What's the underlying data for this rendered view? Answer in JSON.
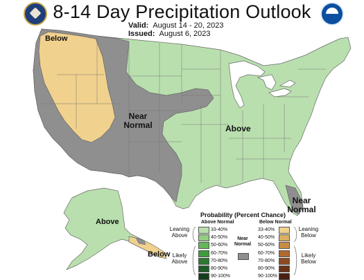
{
  "header": {
    "title": "8-14 Day Precipitation Outlook",
    "valid_label": "Valid:",
    "valid_value": "August 14 - 20, 2023",
    "issued_label": "Issued:",
    "issued_value": "August 6, 2023"
  },
  "logos": {
    "left": "commerce-seal-icon",
    "right": "noaa-logo-icon"
  },
  "map_labels": {
    "pacific_nw": "Below",
    "southwest": "Near Normal",
    "east": "Above",
    "florida": "Near Normal",
    "alaska": "Above",
    "alaska_se": "Below"
  },
  "legend": {
    "title": "Probability (Percent Chance)",
    "above_heading": "Above Normal",
    "below_heading": "Below Normal",
    "near_heading": "Near Normal",
    "leaning_above": "Leaning Above",
    "likely_above": "Likely Above",
    "leaning_below": "Leaning Below",
    "likely_below": "Likely Below",
    "above_bins": [
      {
        "label": "33-40%",
        "color": "#b9dfae"
      },
      {
        "label": "40-50%",
        "color": "#92cd83"
      },
      {
        "label": "50-60%",
        "color": "#62b857"
      },
      {
        "label": "60-70%",
        "color": "#3d9e3d"
      },
      {
        "label": "70-80%",
        "color": "#2b7a33"
      },
      {
        "label": "80-90%",
        "color": "#1e5c28"
      },
      {
        "label": "90-100%",
        "color": "#123e1a"
      }
    ],
    "below_bins": [
      {
        "label": "33-40%",
        "color": "#f0d18d"
      },
      {
        "label": "40-50%",
        "color": "#dcae64"
      },
      {
        "label": "50-60%",
        "color": "#c88c45"
      },
      {
        "label": "60-70%",
        "color": "#b06a2e"
      },
      {
        "label": "70-80%",
        "color": "#8e4b1f"
      },
      {
        "label": "80-90%",
        "color": "#6a3216"
      },
      {
        "label": "90-100%",
        "color": "#4a1e10"
      }
    ],
    "near_color": "#8f8f8f"
  },
  "colors": {
    "above": "#b9dfae",
    "below": "#f0d18d",
    "near": "#8f8f8f",
    "lakes": "#ffffff",
    "borders": "#666666"
  }
}
